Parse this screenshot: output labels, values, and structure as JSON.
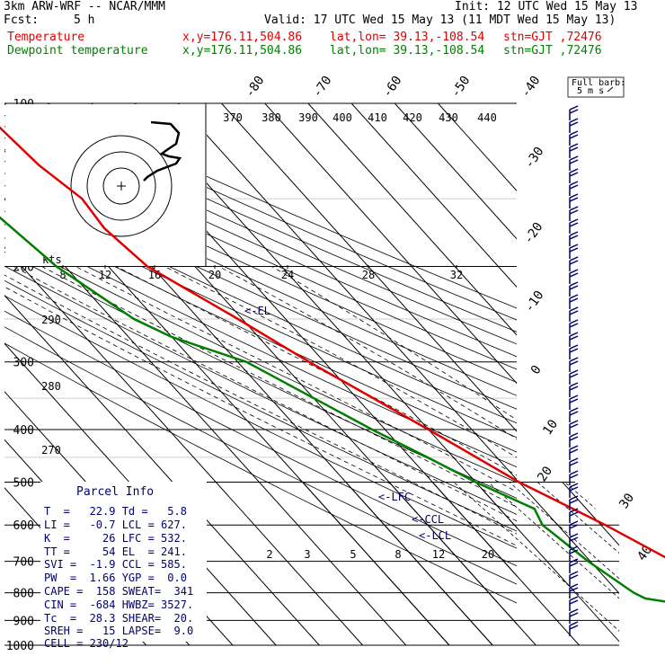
{
  "header": {
    "model": "3km ARW-WRF -- NCAR/MMM",
    "init": "Init: 12 UTC Wed 15 May 13",
    "fcst_label": "Fcst:",
    "fcst_value": "5 h",
    "valid": "Valid: 17 UTC Wed 15 May 13 (11 MDT Wed 15 May 13)",
    "temperature_label": "Temperature",
    "dewpoint_label": "Dewpoint temperature",
    "loc_xy": "x,y=176.11,504.86",
    "loc_latlon": "lat,lon= 39.13,-108.54",
    "loc_stn": "stn=GJT ,72476"
  },
  "colors": {
    "temperature": "#e00000",
    "dewpoint": "#008000",
    "axes": "#000000",
    "info": "#00006e"
  },
  "chart_data": {
    "type": "line",
    "title": "",
    "ylabel": "",
    "y_scale": "log-pressure",
    "ylim": [
      1000,
      100
    ],
    "pressure_ticks": [
      "100",
      "200",
      "300",
      "400",
      "500",
      "600",
      "700",
      "800",
      "900",
      "1000"
    ],
    "isotherm_labels": [
      -80,
      -70,
      -60,
      -50,
      -40,
      -30,
      -20,
      -10,
      0,
      10,
      20,
      30,
      40
    ],
    "theta_labels": [
      370,
      380,
      390,
      400,
      410,
      420,
      430,
      440
    ],
    "theta_side_labels": [
      290,
      280,
      270
    ],
    "wind_label_kts": "kts",
    "wind_ticks": [
      "8",
      "12",
      "16",
      "20",
      "24",
      "28",
      "32"
    ],
    "mixing_ratio_labels": [
      "2",
      "3",
      "5",
      "8",
      "12",
      "20"
    ],
    "barb_legend": "Full barb:",
    "barb_legend_value": "5 m s",
    "series": [
      {
        "name": "Temperature",
        "points": [
          [
            850,
            21.5
          ],
          [
            800,
            17.5
          ],
          [
            700,
            9
          ],
          [
            600,
            1
          ],
          [
            500,
            -10
          ],
          [
            400,
            -20
          ],
          [
            300,
            -33.5
          ],
          [
            250,
            -41
          ],
          [
            200,
            -51
          ],
          [
            170,
            -53
          ],
          [
            150,
            -52
          ],
          [
            130,
            -55
          ],
          [
            100,
            -57
          ]
        ]
      },
      {
        "name": "Dewpoint temperature",
        "points": [
          [
            850,
            5.8
          ],
          [
            820,
            -5
          ],
          [
            800,
            -6.5
          ],
          [
            700,
            -10.5
          ],
          [
            600,
            -13.5
          ],
          [
            560,
            -12
          ],
          [
            500,
            -20
          ],
          [
            450,
            -26
          ],
          [
            400,
            -33
          ],
          [
            300,
            -48
          ],
          [
            270,
            -60
          ],
          [
            250,
            -65
          ],
          [
            200,
            -72
          ],
          [
            150,
            -76
          ],
          [
            120,
            -76
          ],
          [
            100,
            -75
          ]
        ]
      }
    ],
    "annotations": [
      "<-EL",
      "<-LFC",
      "<-CCL",
      "<-LCL"
    ]
  },
  "parcel_info": {
    "title": "Parcel Info",
    "rows": [
      "T  =   22.9 Td =   5.8",
      "LI =   -0.7 LCL = 627.",
      "K  =     26 LFC = 532.",
      "TT =     54 EL  = 241.",
      "SVI =  -1.9 CCL = 585.",
      "PW  =  1.66 YGP =  0.0",
      "CAPE =  158 SWEAT=  341",
      "CIN =  -684 HWBZ= 3527.",
      "Tc  =  28.3 SHEAR=  20.",
      "SREH =   15 LAPSE=  9.0",
      "CELL = 230/12"
    ]
  }
}
